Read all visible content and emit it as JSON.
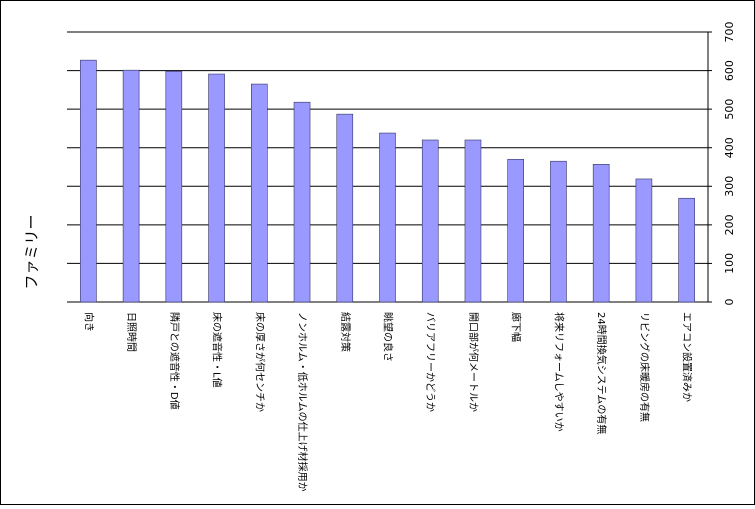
{
  "chart_data": {
    "type": "bar",
    "y_label": "ファミリー",
    "categories": [
      "向き",
      "日照時間",
      "隣戸との遮音性・D値",
      "床の遮音性・L値",
      "床の厚さが何センチか",
      "ノンホルム・低ホルムの仕上げ材採用か",
      "結露対策",
      "眺望の良さ",
      "バリアフリーかどうか",
      "開口部が何メートルか",
      "廊下幅",
      "将来リフォームしやすいか",
      "24時間換気システムの有無",
      "リビングの床暖房の有無",
      "エアコン設置済みか"
    ],
    "values": [
      627,
      601,
      598,
      591,
      565,
      518,
      487,
      438,
      420,
      420,
      370,
      365,
      357,
      319,
      269
    ],
    "color": "#9999ff",
    "ylim": [
      0,
      700
    ],
    "yticks": [
      0,
      100,
      200,
      300,
      400,
      500,
      600,
      700
    ],
    "grid": true,
    "y_axis_side": "right"
  }
}
